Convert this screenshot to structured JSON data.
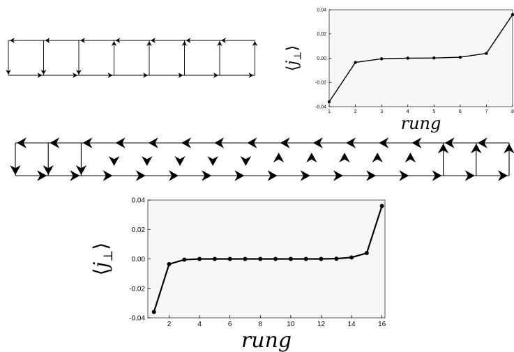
{
  "chart_data": [
    {
      "type": "line",
      "panel": "top-right",
      "xlabel": "rung",
      "ylabel": "⟨j⊥⟩",
      "ylabel_symbol": "j",
      "ylabel_subscript": "⊥",
      "x": [
        1,
        2,
        3,
        4,
        5,
        6,
        7,
        8
      ],
      "y": [
        -0.036,
        -0.0035,
        -0.0005,
        0.0,
        0.0002,
        0.0008,
        0.004,
        0.036
      ],
      "xlim": [
        1,
        8
      ],
      "ylim": [
        -0.04,
        0.04
      ],
      "xticks": [
        "1",
        "2",
        "3",
        "4",
        "5",
        "6",
        "7",
        "8"
      ],
      "yticks": [
        "0.04",
        "0.02",
        "0.00",
        "-0.02",
        "-0.04"
      ],
      "grid": false
    },
    {
      "type": "line",
      "panel": "bottom",
      "xlabel": "rung",
      "ylabel": "⟨j⊥⟩",
      "ylabel_symbol": "j",
      "ylabel_subscript": "⊥",
      "x": [
        1,
        2,
        3,
        4,
        5,
        6,
        7,
        8,
        9,
        10,
        11,
        12,
        13,
        14,
        15,
        16
      ],
      "y": [
        -0.036,
        -0.0035,
        -0.0005,
        0.0,
        0.0,
        0.0,
        0.0,
        0.0,
        0.0,
        0.0,
        0.0,
        0.0,
        0.0002,
        0.001,
        0.004,
        0.036
      ],
      "xlim": [
        0.6,
        16.2
      ],
      "ylim": [
        -0.04,
        0.04
      ],
      "xticks": [
        "2",
        "4",
        "6",
        "8",
        "10",
        "12",
        "14",
        "16"
      ],
      "yticks": [
        "0.04",
        "0.02",
        "0.00",
        "-0.02",
        "-0.04"
      ],
      "grid": false
    }
  ],
  "diagrams": {
    "ladder_small": {
      "rungs": 8,
      "rung_directions": [
        "down",
        "down",
        "down",
        "up",
        "up",
        "up",
        "up",
        "up"
      ]
    },
    "ladder_large": {
      "rungs": 16,
      "rung_directions": [
        "down",
        "down",
        "down",
        "down",
        "down",
        "down",
        "down",
        "down",
        "up",
        "up",
        "up",
        "up",
        "up",
        "up",
        "up",
        "up"
      ]
    }
  }
}
